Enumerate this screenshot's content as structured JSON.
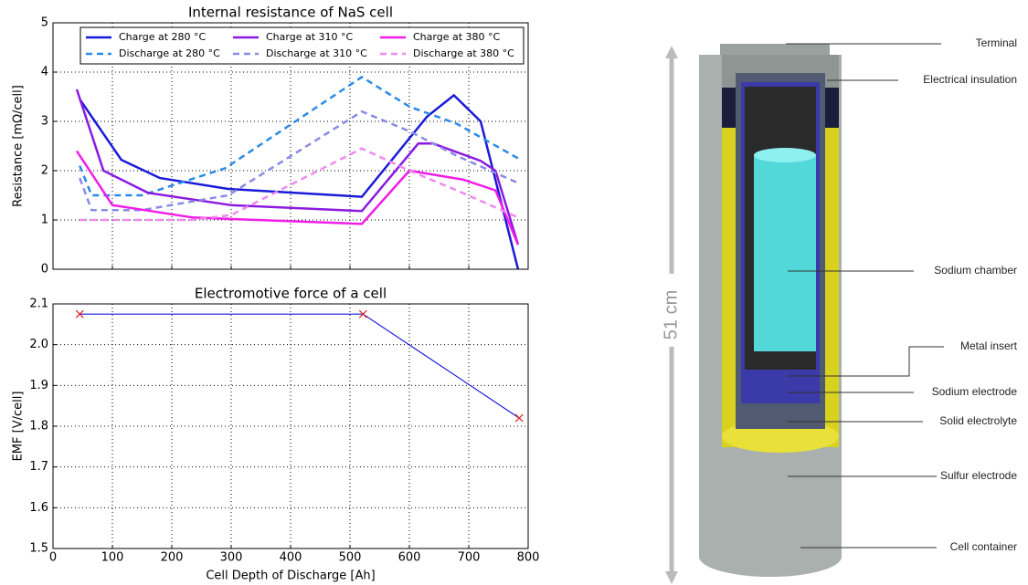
{
  "chart_data": [
    {
      "type": "line",
      "title": "Internal resistance of NaS cell",
      "ylabel": "Resistance [mΩ/cell]",
      "xlim": [
        0,
        800
      ],
      "xticks": [
        0,
        100,
        200,
        300,
        400,
        500,
        600,
        700,
        800
      ],
      "xtick_labels": false,
      "ylim": [
        0,
        5
      ],
      "yticks": [
        0,
        1,
        2,
        3,
        4,
        5
      ],
      "grid": true,
      "legend": "upper center",
      "series": [
        {
          "name": "Charge at 280 °C",
          "color": "#1a1ad8",
          "linestyle": "solid",
          "x": [
            45,
            115,
            180,
            295,
            520,
            630,
            675,
            720,
            783
          ],
          "values": [
            3.45,
            2.22,
            1.85,
            1.63,
            1.47,
            3.1,
            3.53,
            3.0,
            0
          ]
        },
        {
          "name": "Discharge at 280 °C",
          "color": "#2a8ae8",
          "linestyle": "dashed",
          "x": [
            45,
            65,
            150,
            290,
            520,
            600,
            680,
            783
          ],
          "values": [
            2.1,
            1.5,
            1.5,
            2.05,
            3.9,
            3.3,
            2.95,
            2.25
          ]
        },
        {
          "name": "Charge at 310 °C",
          "color": "#8a1ae0",
          "linestyle": "solid",
          "x": [
            40,
            85,
            160,
            300,
            520,
            615,
            640,
            720,
            745,
            783
          ],
          "values": [
            3.65,
            2.0,
            1.55,
            1.3,
            1.18,
            2.55,
            2.55,
            2.2,
            2.0,
            0.5
          ]
        },
        {
          "name": "Discharge at 310 °C",
          "color": "#8a8ae8",
          "linestyle": "dashed",
          "x": [
            45,
            65,
            150,
            295,
            520,
            600,
            680,
            783
          ],
          "values": [
            1.85,
            1.2,
            1.2,
            1.5,
            3.2,
            2.8,
            2.3,
            1.75
          ]
        },
        {
          "name": "Charge at 380 °C",
          "color": "#f01ee8",
          "linestyle": "solid",
          "x": [
            40,
            100,
            235,
            520,
            600,
            690,
            745,
            783
          ],
          "values": [
            2.4,
            1.3,
            1.05,
            0.92,
            2.0,
            1.82,
            1.6,
            0.5
          ]
        },
        {
          "name": "Discharge at 380 °C",
          "color": "#f08af0",
          "linestyle": "dashed",
          "x": [
            45,
            100,
            235,
            300,
            520,
            600,
            680,
            783
          ],
          "values": [
            1.0,
            1.0,
            1.0,
            1.1,
            2.45,
            2.0,
            1.6,
            1.05
          ]
        }
      ]
    },
    {
      "type": "line",
      "title": "Electromotive force of a cell",
      "ylabel": "EMF [V/cell]",
      "xlabel": "Cell Depth of Discharge [Ah]",
      "xlim": [
        0,
        800
      ],
      "xticks": [
        0,
        100,
        200,
        300,
        400,
        500,
        600,
        700,
        800
      ],
      "xtick_labels": true,
      "ylim": [
        1.5,
        2.1
      ],
      "yticks": [
        1.5,
        1.6,
        1.7,
        1.8,
        1.9,
        {
          "value": 2.0,
          "label": "2.0"
        },
        2.1
      ],
      "grid": true,
      "series": [
        {
          "color": "#1a1ad8",
          "marker_color": "#e02020",
          "linestyle": "solid",
          "x": [
            45,
            522,
            785
          ],
          "values": [
            2.075,
            2.075,
            1.82
          ]
        }
      ]
    }
  ],
  "diagram": {
    "height_label": "51 cm",
    "labels": [
      "Terminal",
      "Electrical insulation",
      "Sodium chamber",
      "Metal insert",
      "Sodium electrode",
      "Solid electrolyte",
      "Sulfur electrode",
      "Cell container"
    ]
  }
}
